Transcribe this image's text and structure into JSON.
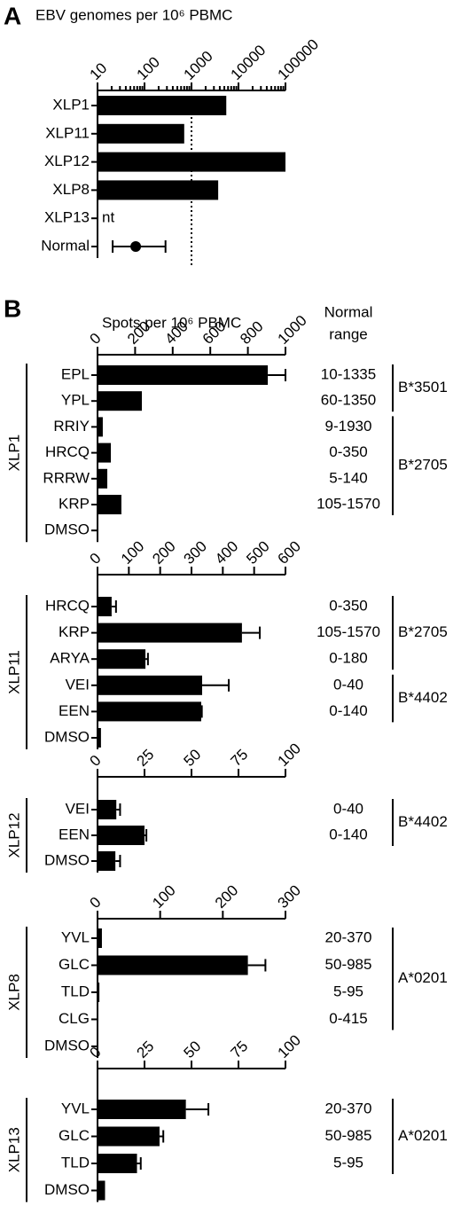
{
  "panel_labels": [
    "A",
    "B"
  ],
  "chart_data": [
    {
      "type": "bar",
      "title": "EBV genomes per 10⁶ PBMC",
      "categories": [
        "XLP1",
        "XLP11",
        "XLP12",
        "XLP8",
        "XLP13",
        "Normal"
      ],
      "values": [
        5500,
        700,
        100000,
        3700,
        null,
        null
      ],
      "value_labels": [
        null,
        null,
        null,
        null,
        "nt",
        null
      ],
      "normal": {
        "value": 65,
        "range": [
          21,
          280
        ]
      },
      "reference_line": 1000,
      "log_x": true,
      "xlim": [
        10,
        100000
      ],
      "xticks": [
        10,
        100,
        1000,
        10000,
        100000
      ],
      "color": "#000000"
    },
    {
      "type": "bar",
      "title": "Spots per 10⁶ PBMC",
      "range_title": [
        "Normal",
        "range"
      ],
      "group": "XLP1",
      "categories": [
        "EPL",
        "YPL",
        "RRIY",
        "HRCQ",
        "RRRW",
        "KRP",
        "DMSO"
      ],
      "values": [
        906,
        236,
        28,
        71,
        52,
        127,
        0
      ],
      "errors": [
        94,
        null,
        null,
        null,
        null,
        null,
        null
      ],
      "normal_ranges": [
        "10-1335",
        "60-1350",
        "9-1930",
        "0-350",
        "5-140",
        "105-1570",
        null
      ],
      "hla": [
        "B*3501",
        "B*3501",
        "B*2705",
        "B*2705",
        "B*2705",
        "B*2705",
        null
      ],
      "xlim": [
        0,
        1000
      ],
      "xticks": [
        0,
        200,
        400,
        600,
        800,
        1000
      ],
      "color": "#000000"
    },
    {
      "type": "bar",
      "group": "XLP11",
      "categories": [
        "HRCQ",
        "KRP",
        "ARYA",
        "VEI",
        "EEN",
        "DMSO"
      ],
      "values": [
        45,
        461,
        153,
        334,
        331,
        11
      ],
      "errors": [
        14,
        57,
        8,
        85,
        2,
        null
      ],
      "normal_ranges": [
        "0-350",
        "105-1570",
        "0-180",
        "0-40",
        "0-140",
        null
      ],
      "hla": [
        "B*2705",
        "B*2705",
        "B*2705",
        "B*4402",
        "B*4402",
        null
      ],
      "xlim": [
        0,
        600
      ],
      "xticks": [
        0,
        100,
        200,
        300,
        400,
        500,
        600
      ],
      "color": "#000000"
    },
    {
      "type": "bar",
      "group": "XLP12",
      "categories": [
        "VEI",
        "EEN",
        "DMSO"
      ],
      "values": [
        10,
        25,
        9.5
      ],
      "errors": [
        2,
        1,
        2.5
      ],
      "normal_ranges": [
        "0-40",
        "0-140",
        null
      ],
      "hla": [
        "B*4402",
        "B*4402",
        null
      ],
      "xlim": [
        0,
        100
      ],
      "xticks": [
        0,
        25,
        50,
        75,
        100
      ],
      "color": "#000000"
    },
    {
      "type": "bar",
      "group": "XLP8",
      "categories": [
        "YVL",
        "GLC",
        "TLD",
        "CLG",
        "DMSO"
      ],
      "values": [
        7,
        240,
        3,
        1,
        0
      ],
      "errors": [
        null,
        28,
        null,
        null,
        null
      ],
      "normal_ranges": [
        "20-370",
        "50-985",
        "5-95",
        "0-415",
        null
      ],
      "hla": [
        "A*0201",
        "A*0201",
        "A*0201",
        "A*0201",
        null
      ],
      "xlim": [
        0,
        300
      ],
      "xticks": [
        0,
        100,
        200,
        300
      ],
      "color": "#000000"
    },
    {
      "type": "bar",
      "group": "XLP13",
      "categories": [
        "YVL",
        "GLC",
        "TLD",
        "DMSO"
      ],
      "values": [
        47,
        33,
        21,
        4
      ],
      "errors": [
        12,
        2,
        2,
        null
      ],
      "normal_ranges": [
        "20-370",
        "50-985",
        "5-95",
        null
      ],
      "hla": [
        "A*0201",
        "A*0201",
        "A*0201",
        null
      ],
      "xlim": [
        0,
        100
      ],
      "xticks": [
        0,
        25,
        50,
        75,
        100
      ],
      "color": "#000000"
    }
  ]
}
